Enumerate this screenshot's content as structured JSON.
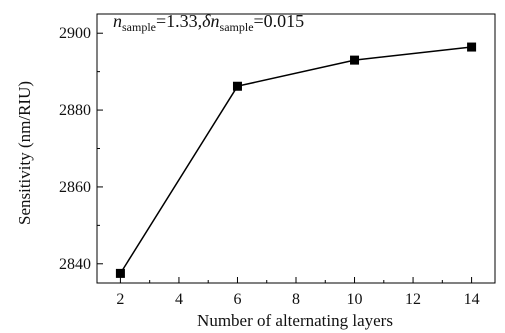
{
  "chart_data": {
    "type": "line",
    "xlabel": "Number of alternating layers",
    "ylabel": "Sensitivity (nm/RIU)",
    "x_ticks": [
      "2",
      "4",
      "6",
      "8",
      "10",
      "12",
      "14"
    ],
    "y_ticks": [
      "2840",
      "2860",
      "2880",
      "2900"
    ],
    "xlim": [
      1.2,
      14.8
    ],
    "ylim": [
      2835,
      2905
    ],
    "series": [
      {
        "x": [
          2,
          6,
          10,
          14
        ],
        "values": [
          2837.5,
          2886.2,
          2893.0,
          2896.4
        ]
      }
    ],
    "annotation": {
      "n_symbol": "n",
      "n_sub": "sample",
      "n_value": "=1.33,",
      "delta_symbol": "δn",
      "delta_sub": "sample",
      "delta_value": "=0.015"
    },
    "grid": false,
    "marker": "square",
    "line_color": "#000000"
  }
}
